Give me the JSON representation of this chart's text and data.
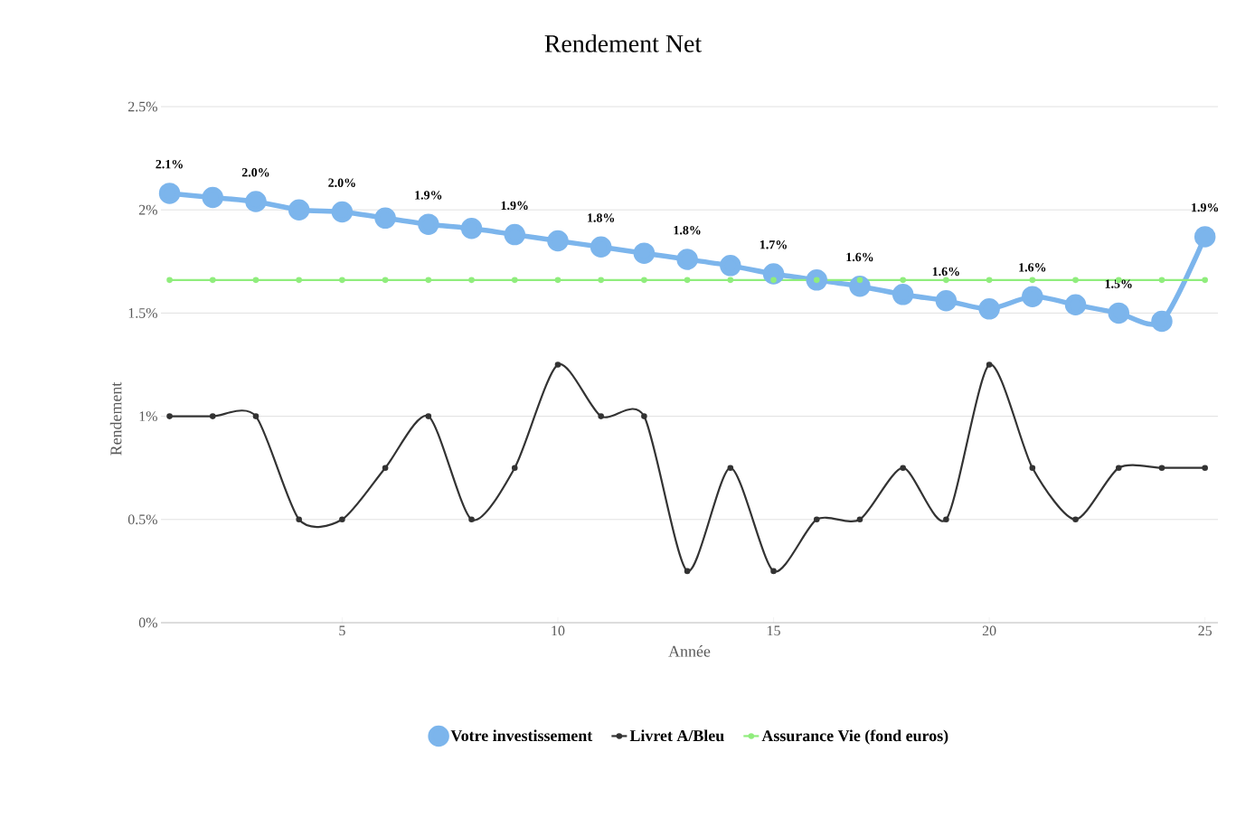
{
  "chart_data": {
    "type": "line",
    "title": "Rendement Net",
    "xlabel": "Année",
    "ylabel": "Rendement",
    "x": [
      1,
      2,
      3,
      4,
      5,
      6,
      7,
      8,
      9,
      10,
      11,
      12,
      13,
      14,
      15,
      16,
      17,
      18,
      19,
      20,
      21,
      22,
      23,
      24,
      25
    ],
    "series": [
      {
        "name": "Votre investissement",
        "color": "#7cb5ec",
        "values": [
          2.08,
          2.06,
          2.04,
          2.0,
          1.99,
          1.96,
          1.93,
          1.91,
          1.88,
          1.85,
          1.82,
          1.79,
          1.76,
          1.73,
          1.69,
          1.66,
          1.63,
          1.59,
          1.56,
          1.52,
          1.58,
          1.54,
          1.5,
          1.46,
          1.87
        ],
        "value_labels": [
          "2.1%",
          null,
          "2.0%",
          null,
          "2.0%",
          null,
          "1.9%",
          null,
          "1.9%",
          null,
          "1.8%",
          null,
          "1.8%",
          null,
          "1.7%",
          null,
          "1.6%",
          null,
          "1.6%",
          null,
          "1.6%",
          null,
          "1.5%",
          null,
          "1.9%"
        ]
      },
      {
        "name": "Livret A/Bleu",
        "color": "#333333",
        "values": [
          1,
          1,
          1,
          0.5,
          0.5,
          0.75,
          1,
          0.5,
          0.75,
          1.25,
          1,
          1,
          0.25,
          0.75,
          0.25,
          0.5,
          0.5,
          0.75,
          0.5,
          1.25,
          0.75,
          0.5,
          0.75,
          0.75,
          0.75
        ]
      },
      {
        "name": "Assurance Vie (fond euros)",
        "color": "#90ed7d",
        "values": [
          1.66,
          1.66,
          1.66,
          1.66,
          1.66,
          1.66,
          1.66,
          1.66,
          1.66,
          1.66,
          1.66,
          1.66,
          1.66,
          1.66,
          1.66,
          1.66,
          1.66,
          1.66,
          1.66,
          1.66,
          1.66,
          1.66,
          1.66,
          1.66,
          1.66
        ]
      }
    ],
    "xlim": [
      0.8,
      25.3
    ],
    "xticks": [
      5,
      10,
      15,
      20,
      25
    ],
    "ylim": [
      0,
      2.5
    ],
    "yticks": [
      {
        "value": 0,
        "label": "0%"
      },
      {
        "value": 0.5,
        "label": "0.5%"
      },
      {
        "value": 1,
        "label": "1%"
      },
      {
        "value": 1.5,
        "label": "1.5%"
      },
      {
        "value": 2,
        "label": "2%"
      },
      {
        "value": 2.5,
        "label": "2.5%"
      }
    ],
    "grid": "y",
    "legend": "bottom",
    "marker": "circle",
    "line_style": "solid"
  }
}
